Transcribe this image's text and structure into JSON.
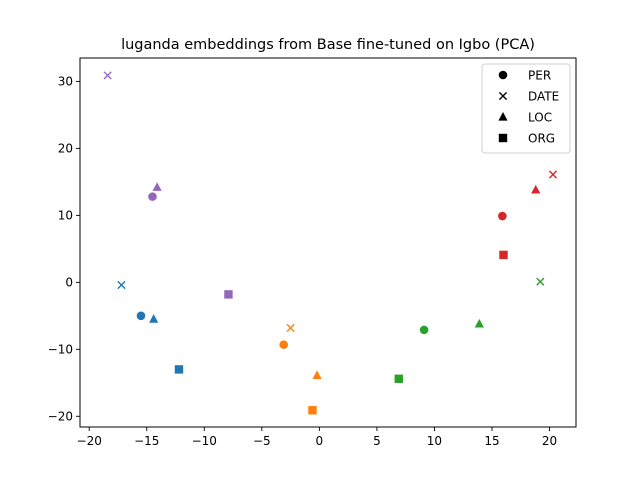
{
  "chart_data": {
    "type": "scatter",
    "title": "luganda embeddings from Base fine-tuned on Igbo (PCA)",
    "xlabel": "",
    "ylabel": "",
    "xlim": [
      -20.8,
      22.3
    ],
    "ylim": [
      -21.6,
      33.5
    ],
    "xticks": [
      -20,
      -15,
      -10,
      -5,
      0,
      5,
      10,
      15,
      20
    ],
    "yticks": [
      -20,
      -10,
      0,
      10,
      20,
      30
    ],
    "grid": false,
    "legend_position": "top-right",
    "legend": [
      {
        "label": "PER",
        "marker": "circle"
      },
      {
        "label": "DATE",
        "marker": "x"
      },
      {
        "label": "LOC",
        "marker": "triangle"
      },
      {
        "label": "ORG",
        "marker": "square"
      }
    ],
    "groups": [
      {
        "color": "#1f77b4",
        "points": [
          {
            "entity": "PER",
            "x": -15.5,
            "y": -5.0
          },
          {
            "entity": "DATE",
            "x": -17.2,
            "y": -0.4
          },
          {
            "entity": "LOC",
            "x": -14.4,
            "y": -5.5
          },
          {
            "entity": "ORG",
            "x": -12.2,
            "y": -13.0
          }
        ]
      },
      {
        "color": "#ff7f0e",
        "points": [
          {
            "entity": "PER",
            "x": -3.1,
            "y": -9.3
          },
          {
            "entity": "DATE",
            "x": -2.5,
            "y": -6.8
          },
          {
            "entity": "LOC",
            "x": -0.2,
            "y": -13.9
          },
          {
            "entity": "ORG",
            "x": -0.6,
            "y": -19.1
          }
        ]
      },
      {
        "color": "#2ca02c",
        "points": [
          {
            "entity": "PER",
            "x": 9.1,
            "y": -7.1
          },
          {
            "entity": "DATE",
            "x": 19.2,
            "y": 0.1
          },
          {
            "entity": "LOC",
            "x": 13.9,
            "y": -6.2
          },
          {
            "entity": "ORG",
            "x": 6.9,
            "y": -14.4
          }
        ]
      },
      {
        "color": "#d62728",
        "points": [
          {
            "entity": "PER",
            "x": 15.9,
            "y": 9.9
          },
          {
            "entity": "DATE",
            "x": 20.3,
            "y": 16.1
          },
          {
            "entity": "LOC",
            "x": 18.8,
            "y": 13.8
          },
          {
            "entity": "ORG",
            "x": 16.0,
            "y": 4.1
          }
        ]
      },
      {
        "color": "#9467bd",
        "points": [
          {
            "entity": "PER",
            "x": -14.5,
            "y": 12.8
          },
          {
            "entity": "DATE",
            "x": -18.4,
            "y": 30.9
          },
          {
            "entity": "LOC",
            "x": -14.1,
            "y": 14.2
          },
          {
            "entity": "ORG",
            "x": -7.9,
            "y": -1.8
          }
        ]
      }
    ]
  }
}
